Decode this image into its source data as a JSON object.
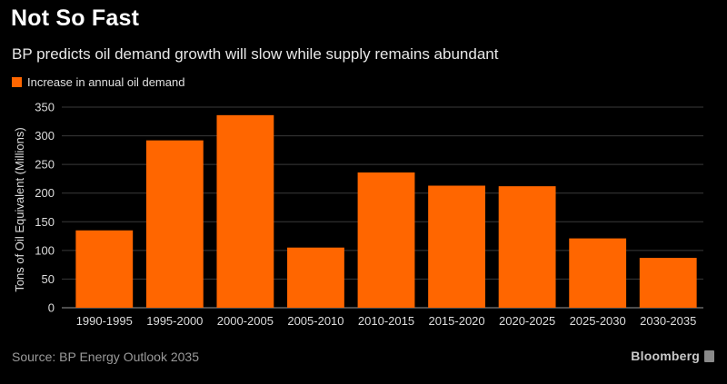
{
  "header": {
    "title": "Not So Fast",
    "subtitle": "BP predicts oil demand growth will slow while supply remains abundant"
  },
  "footer": {
    "source": "Source: BP Energy Outlook 2035",
    "brand": "Bloomberg",
    "brand_icon": "bloomberg-logo-icon"
  },
  "colors": {
    "bar": "#ff6600",
    "background": "#000000",
    "grid": "#3a3a3a"
  },
  "chart_data": {
    "type": "bar",
    "title": "Not So Fast",
    "subtitle": "BP predicts oil demand growth will slow while supply remains abundant",
    "xlabel": "",
    "ylabel": "Tons of Oil Equivalent (Millions)",
    "categories": [
      "1990-1995",
      "1995-2000",
      "2000-2005",
      "2005-2010",
      "2010-2015",
      "2015-2020",
      "2020-2025",
      "2025-2030",
      "2030-2035"
    ],
    "series": [
      {
        "name": "Increase in annual oil demand",
        "values": [
          135,
          292,
          336,
          105,
          236,
          213,
          212,
          121,
          87
        ]
      }
    ],
    "ylim": [
      0,
      350
    ],
    "yticks": [
      0,
      50,
      100,
      150,
      200,
      250,
      300,
      350
    ],
    "grid": true,
    "legend": "top-left"
  }
}
